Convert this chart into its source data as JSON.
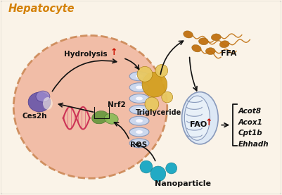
{
  "bg_color": "#faf3e8",
  "border_color": "#aaaaaa",
  "title": "Hepatocyte",
  "title_color": "#d4820a",
  "cell_fill": "#f0b8a0",
  "cell_border": "#cc8855",
  "labels": {
    "hydrolysis": "Hydrolysis",
    "nrf2": "Nrf2",
    "ces2h": "Ces2h",
    "triglyceride": "Triglyceride",
    "ffa": "FFA",
    "fao": "FAO",
    "ros": "ROS",
    "nanoparticle": "Nanoparticle",
    "acot8": "Acot8",
    "acox1": "Acox1",
    "cpt1b": "Cpt1b",
    "ehhadh": "Ehhadh"
  },
  "arrow_color": "#111111",
  "nanoparticle_color": "#22aac4",
  "triglyceride_color": "#d4a020",
  "triglyceride_light": "#e8c860",
  "ffa_color": "#c07010",
  "red_up": "#cc1100",
  "green_color": "#6a9940",
  "green_light": "#88bb55",
  "purple_color": "#6655aa",
  "purple_light": "#9988cc",
  "mito_fill": "#dde8f5",
  "mito_border": "#8899bb",
  "er_fill": "#ccd8ee",
  "er_border": "#8899bb",
  "dna_color1": "#cc3355",
  "dna_color2": "#dd5577"
}
